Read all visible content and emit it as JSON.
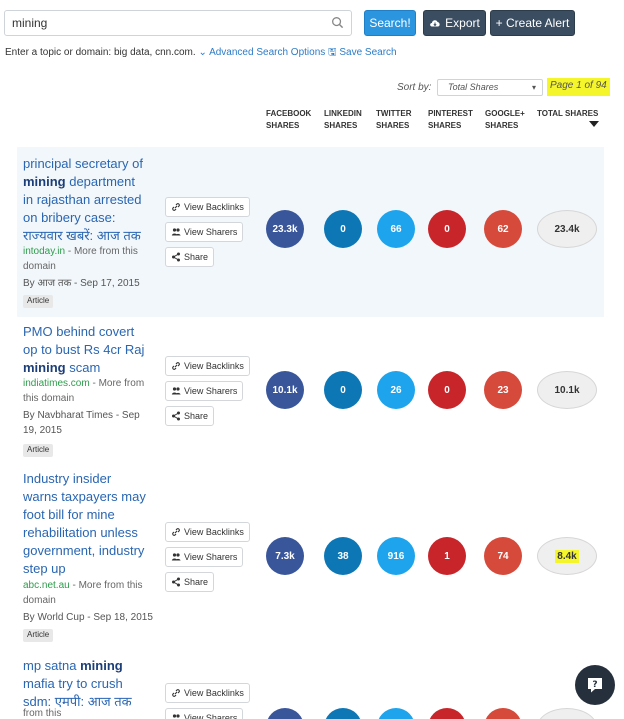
{
  "search": {
    "value": "mining",
    "search_label": "Search!",
    "export_label": "Export",
    "alert_label": "+ Create Alert",
    "hint": "Enter a topic or domain: big data, cnn.com.",
    "advanced_label": "Advanced Search Options",
    "save_label": "Save Search"
  },
  "sort": {
    "label": "Sort by:",
    "selected": "Total Shares",
    "page": "Page 1 of 94"
  },
  "columns": {
    "facebook": [
      "FACEBOOK",
      "SHARES"
    ],
    "linkedin": [
      "LINKEDIN",
      "SHARES"
    ],
    "twitter": [
      "TWITTER",
      "SHARES"
    ],
    "pinterest": [
      "PINTEREST",
      "SHARES"
    ],
    "googleplus": [
      "GOOGLE+",
      "SHARES"
    ],
    "total": "TOTAL SHARES"
  },
  "actions": {
    "backlinks": "View Backlinks",
    "sharers": "View Sharers",
    "share": "Share"
  },
  "results": [
    {
      "title_lines": [
        [
          "principal secretary of",
          ""
        ],
        [
          "",
          "mining",
          " department"
        ],
        [
          "in rajasthan arrested",
          ""
        ],
        [
          "on bribery case:",
          ""
        ],
        [
          "राज्यवार खबरें: आज तक",
          ""
        ]
      ],
      "domain": "intoday.in",
      "more": " - More from this",
      "more2": "domain",
      "by": "By आज तक - Sep 17, 2015",
      "tag": "Article",
      "facebook": "23.3k",
      "linkedin": "0",
      "twitter": "66",
      "pinterest": "0",
      "googleplus": "62",
      "total": "23.4k"
    },
    {
      "title_lines": [
        [
          "PMO behind covert",
          ""
        ],
        [
          "op to bust Rs 4cr Raj",
          ""
        ],
        [
          "",
          "mining",
          " scam"
        ]
      ],
      "domain": "indiatimes.com",
      "more": " - More from",
      "more2": "this domain",
      "by": "By Navbharat Times - Sep",
      "by2": "19, 2015",
      "tag": "Article",
      "facebook": "10.1k",
      "linkedin": "0",
      "twitter": "26",
      "pinterest": "0",
      "googleplus": "23",
      "total": "10.1k"
    },
    {
      "title_lines": [
        [
          "Industry insider",
          ""
        ],
        [
          "warns taxpayers may",
          ""
        ],
        [
          "foot bill for mine",
          ""
        ],
        [
          "rehabilitation unless",
          ""
        ],
        [
          "government, industry",
          ""
        ],
        [
          "step up",
          ""
        ]
      ],
      "domain": "abc.net.au",
      "more": " - More from this",
      "more2": "domain",
      "by": "By World Cup - Sep 18, 2015",
      "tag": "Article",
      "facebook": "7.3k",
      "linkedin": "38",
      "twitter": "916",
      "pinterest": "1",
      "googleplus": "74",
      "total": "8.4k"
    },
    {
      "title_lines": [
        [
          "mp satna ",
          "mining",
          ""
        ],
        [
          "mafia try to crush",
          ""
        ],
        [
          "sdm: एमपी: आज तक",
          ""
        ]
      ],
      "domain": "",
      "more": "from this",
      "by": "",
      "tag": "",
      "facebook": "2.5k",
      "linkedin": "0",
      "twitter": "5",
      "pinterest": "0",
      "googleplus": "0",
      "total": "2.5k"
    }
  ],
  "colors": {
    "facebook": "#3a569a",
    "linkedin": "#0d77b6",
    "twitter": "#1da4ec",
    "pinterest": "#c8252b",
    "googleplus": "#d64a3b",
    "highlight": "#f5f52c"
  }
}
